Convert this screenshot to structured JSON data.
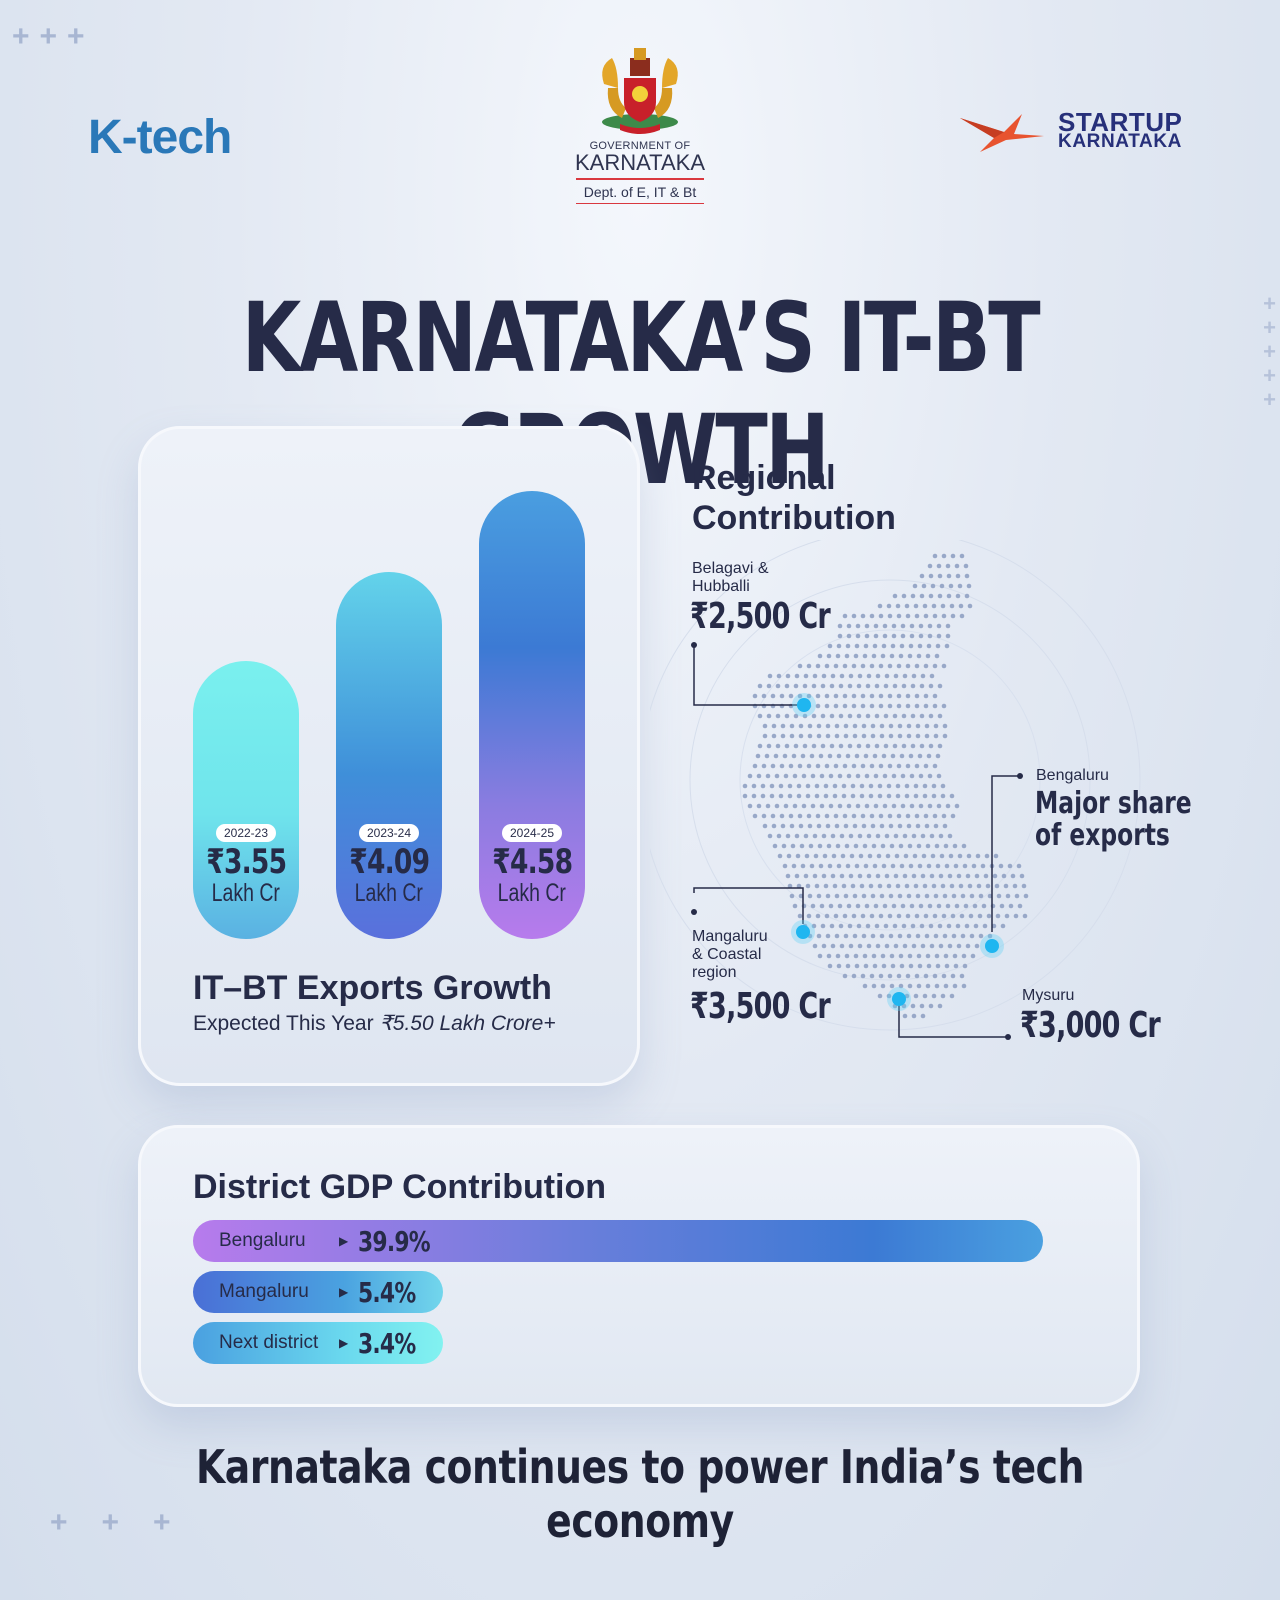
{
  "header": {
    "ktech_logo": "K-tech",
    "gov_line1": "GOVERNMENT OF",
    "gov_line2": "KARNATAKA",
    "gov_line3": "Dept. of E, IT & Bt",
    "startup_line1": "STARTUP",
    "startup_line2": "KARNATAKA"
  },
  "title": "KARNATAKA’S IT-BT GROWTH",
  "exports": {
    "title": "IT–BT Exports Growth",
    "subtitle_prefix": "Expected This Year ",
    "subtitle_value": "₹5.50 Lakh Crore+",
    "bars": [
      {
        "year": "2022-23",
        "value": "₹3.55",
        "unit": "Lakh Cr"
      },
      {
        "year": "2023-24",
        "value": "₹4.09",
        "unit": "Lakh Cr"
      },
      {
        "year": "2024-25",
        "value": "₹4.58",
        "unit": "Lakh Cr"
      }
    ]
  },
  "regional": {
    "title_line1": "Regional",
    "title_line2": "Contribution",
    "belagavi_label_1": "Belagavi &",
    "belagavi_label_2": "Hubballi",
    "belagavi_value": "₹2,500 Cr",
    "bengaluru_label": "Bengaluru",
    "bengaluru_note_1": "Major share",
    "bengaluru_note_2": "of exports",
    "mangaluru_label_1": "Mangaluru",
    "mangaluru_label_2": "& Coastal",
    "mangaluru_label_3": "region",
    "mangaluru_value": "₹3,500 Cr",
    "mysuru_label": "Mysuru",
    "mysuru_value": "₹3,000 Cr"
  },
  "gdp": {
    "title": "District GDP Contribution",
    "rows": [
      {
        "label": "Bengaluru",
        "value": "39.9%"
      },
      {
        "label": "Mangaluru",
        "value": "5.4%"
      },
      {
        "label": "Next district",
        "value": "3.4%"
      }
    ]
  },
  "footer": "Karnataka continues to power India’s tech economy",
  "chart_data": [
    {
      "type": "bar",
      "title": "IT–BT Exports Growth",
      "categories": [
        "2022-23",
        "2023-24",
        "2024-25"
      ],
      "values": [
        3.55,
        4.09,
        4.58
      ],
      "unit": "Lakh Cr",
      "colors": [
        "#79eef0",
        "#3f7ad4",
        "#b47ae8"
      ]
    },
    {
      "type": "bar",
      "orientation": "horizontal",
      "title": "District GDP Contribution",
      "categories": [
        "Bengaluru",
        "Mangaluru",
        "Next district"
      ],
      "values": [
        39.9,
        5.4,
        3.4
      ],
      "unit": "%",
      "colors": [
        "#b47ae8",
        "#4a7bd6",
        "#5fc6e8"
      ]
    }
  ]
}
